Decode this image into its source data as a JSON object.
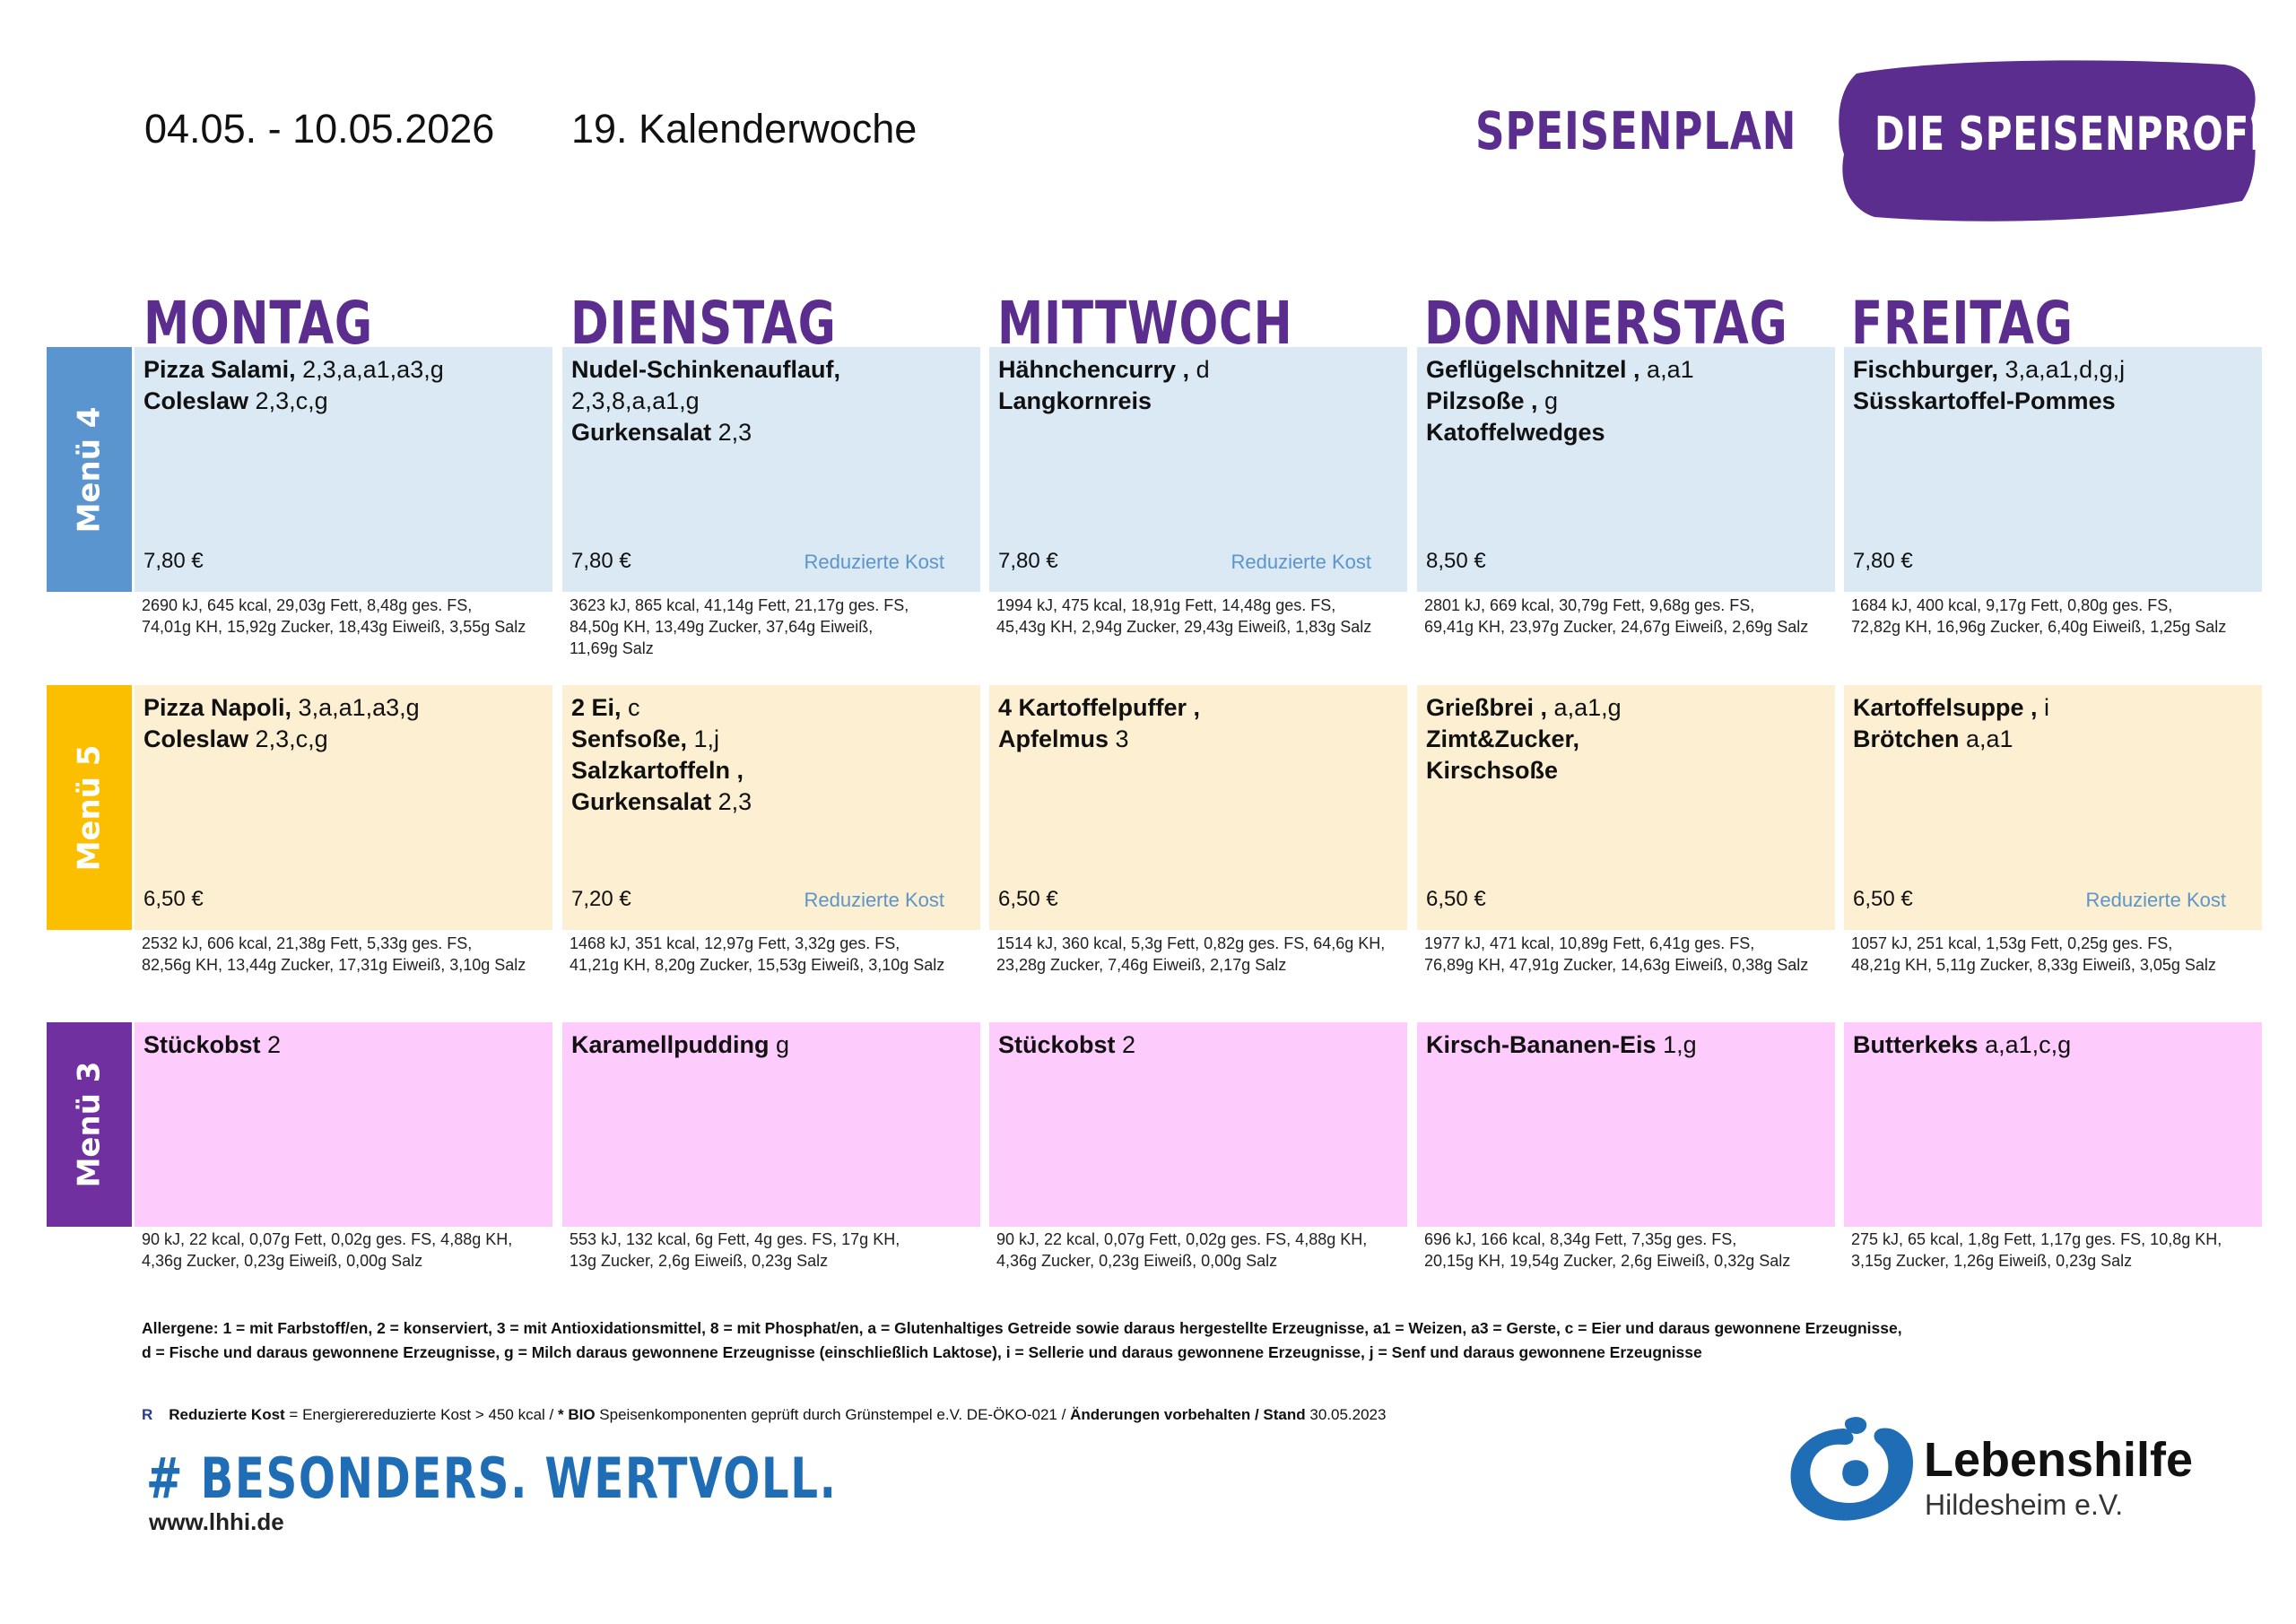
{
  "header": {
    "date_range": "04.05. - 10.05.2026",
    "week": "19. Kalenderwoche",
    "title": "SPEISENPLAN",
    "brand": "DIE SPEISENPROFIS",
    "brand_color": "#5b2d8e"
  },
  "days": [
    "MONTAG",
    "DIENSTAG",
    "MITTWOCH",
    "DONNERSTAG",
    "FREITAG"
  ],
  "menus": [
    {
      "label": "Menü 4",
      "color": "#5b95cf",
      "bg": "#dbe9f5",
      "cells": [
        {
          "lines": [
            {
              "b": "Pizza Salami,",
              "t": " 2,3,a,a1,a3,g"
            },
            {
              "b": "Coleslaw",
              "t": " 2,3,c,g"
            }
          ],
          "price": "7,80 €",
          "redux": "",
          "nut": [
            "2690 kJ, 645 kcal, 29,03g Fett, 8,48g ges. FS,",
            "74,01g KH, 15,92g Zucker, 18,43g Eiweiß, 3,55g Salz"
          ]
        },
        {
          "lines": [
            {
              "b": "Nudel-Schinkenauflauf,",
              "t": ""
            },
            {
              "b": "",
              "t": "2,3,8,a,a1,g"
            },
            {
              "b": "Gurkensalat",
              "t": " 2,3"
            }
          ],
          "price": "7,80 €",
          "redux": "Reduzierte Kost",
          "nut": [
            "3623 kJ, 865 kcal, 41,14g Fett, 21,17g ges. FS,",
            "84,50g KH, 13,49g Zucker, 37,64g Eiweiß,",
            "11,69g Salz"
          ]
        },
        {
          "lines": [
            {
              "b": "Hähnchencurry ,",
              "t": " d"
            },
            {
              "b": "Langkornreis",
              "t": ""
            }
          ],
          "price": "7,80 €",
          "redux": "Reduzierte Kost",
          "nut": [
            "1994 kJ, 475 kcal, 18,91g Fett, 14,48g ges. FS,",
            "45,43g KH, 2,94g Zucker, 29,43g Eiweiß, 1,83g Salz"
          ]
        },
        {
          "lines": [
            {
              "b": "Geflügelschnitzel ,",
              "t": " a,a1"
            },
            {
              "b": "Pilzsoße ,",
              "t": " g"
            },
            {
              "b": "Katoffelwedges",
              "t": ""
            }
          ],
          "price": "8,50 €",
          "redux": "",
          "nut": [
            "2801 kJ, 669 kcal, 30,79g Fett, 9,68g ges. FS,",
            "69,41g KH, 23,97g Zucker, 24,67g Eiweiß, 2,69g Salz"
          ]
        },
        {
          "lines": [
            {
              "b": "Fischburger,",
              "t": " 3,a,a1,d,g,j"
            },
            {
              "b": "Süsskartoffel-Pommes",
              "t": ""
            }
          ],
          "price": "7,80 €",
          "redux": "",
          "nut": [
            "1684 kJ, 400 kcal, 9,17g Fett, 0,80g ges. FS,",
            "72,82g KH, 16,96g Zucker, 6,40g Eiweiß, 1,25g Salz"
          ]
        }
      ]
    },
    {
      "label": "Menü 5",
      "color": "#fbbf00",
      "bg": "#fdf0d2",
      "cells": [
        {
          "lines": [
            {
              "b": "Pizza Napoli,",
              "t": " 3,a,a1,a3,g"
            },
            {
              "b": "Coleslaw",
              "t": " 2,3,c,g"
            }
          ],
          "price": "6,50 €",
          "redux": "",
          "nut": [
            "2532 kJ, 606 kcal, 21,38g Fett, 5,33g ges. FS,",
            "82,56g KH, 13,44g Zucker, 17,31g Eiweiß, 3,10g Salz"
          ]
        },
        {
          "lines": [
            {
              "b": "2 Ei,",
              "t": " c"
            },
            {
              "b": "Senfsoße,",
              "t": " 1,j"
            },
            {
              "b": "Salzkartoffeln ,",
              "t": ""
            },
            {
              "b": "Gurkensalat",
              "t": " 2,3"
            }
          ],
          "price": "7,20 €",
          "redux": "Reduzierte Kost",
          "nut": [
            "1468 kJ, 351 kcal, 12,97g Fett, 3,32g ges. FS,",
            "41,21g KH, 8,20g Zucker, 15,53g Eiweiß, 3,10g Salz"
          ]
        },
        {
          "lines": [
            {
              "b": "4 Kartoffelpuffer ,",
              "t": ""
            },
            {
              "b": "Apfelmus",
              "t": " 3"
            }
          ],
          "price": "6,50 €",
          "redux": "",
          "nut": [
            "1514 kJ, 360 kcal, 5,3g Fett, 0,82g ges. FS, 64,6g KH,",
            "23,28g Zucker, 7,46g Eiweiß, 2,17g Salz"
          ]
        },
        {
          "lines": [
            {
              "b": "Grießbrei ,",
              "t": " a,a1,g"
            },
            {
              "b": "Zimt&Zucker,",
              "t": ""
            },
            {
              "b": "Kirschsoße",
              "t": ""
            }
          ],
          "price": "6,50 €",
          "redux": "",
          "nut": [
            "1977 kJ, 471 kcal, 10,89g Fett, 6,41g ges. FS,",
            "76,89g KH, 47,91g Zucker, 14,63g Eiweiß, 0,38g Salz"
          ]
        },
        {
          "lines": [
            {
              "b": "Kartoffelsuppe ,",
              "t": " i"
            },
            {
              "b": "Brötchen",
              "t": " a,a1"
            }
          ],
          "price": "6,50 €",
          "redux": "Reduzierte Kost",
          "nut": [
            "1057 kJ, 251 kcal, 1,53g Fett, 0,25g ges. FS,",
            "48,21g KH, 5,11g Zucker, 8,33g Eiweiß, 3,05g Salz"
          ]
        }
      ]
    },
    {
      "label": "Menü 3",
      "color": "#7030a0",
      "bg": "#fecbfd",
      "cells": [
        {
          "lines": [
            {
              "b": "Stückobst",
              "t": " 2"
            }
          ],
          "price": "",
          "redux": "",
          "nut": [
            "90 kJ, 22 kcal, 0,07g Fett, 0,02g ges. FS, 4,88g KH,",
            "4,36g Zucker, 0,23g Eiweiß, 0,00g Salz"
          ]
        },
        {
          "lines": [
            {
              "b": "Karamellpudding",
              "t": " g"
            }
          ],
          "price": "",
          "redux": "",
          "nut": [
            "553 kJ, 132 kcal, 6g Fett, 4g ges. FS, 17g KH,",
            "13g Zucker, 2,6g Eiweiß, 0,23g Salz"
          ]
        },
        {
          "lines": [
            {
              "b": "Stückobst",
              "t": " 2"
            }
          ],
          "price": "",
          "redux": "",
          "nut": [
            "90 kJ, 22 kcal, 0,07g Fett, 0,02g ges. FS, 4,88g KH,",
            "4,36g Zucker, 0,23g Eiweiß, 0,00g Salz"
          ]
        },
        {
          "lines": [
            {
              "b": "Kirsch-Bananen-Eis",
              "t": " 1,g"
            }
          ],
          "price": "",
          "redux": "",
          "nut": [
            "696 kJ, 166 kcal, 8,34g Fett, 7,35g ges. FS,",
            "20,15g KH, 19,54g Zucker, 2,6g Eiweiß, 0,32g Salz"
          ]
        },
        {
          "lines": [
            {
              "b": "Butterkeks",
              "t": " a,a1,c,g"
            }
          ],
          "price": "",
          "redux": "",
          "nut": [
            "275 kJ, 65 kcal, 1,8g Fett, 1,17g ges. FS, 10,8g KH,",
            "3,15g Zucker, 1,26g Eiweiß, 0,23g Salz"
          ]
        }
      ]
    }
  ],
  "allergens": [
    "Allergene: 1 = mit Farbstoff/en, 2 = konserviert, 3 = mit Antioxidationsmittel, 8 = mit Phosphat/en, a = Glutenhaltiges Getreide sowie daraus hergestellte Erzeugnisse, a1 = Weizen, a3 = Gerste, c = Eier und daraus gewonnene Erzeugnisse,",
    "d = Fische und daraus gewonnene Erzeugnisse, g = Milch daraus gewonnene Erzeugnisse (einschließlich Laktose), i = Sellerie und daraus gewonnene Erzeugnisse, j = Senf und daraus gewonnene Erzeugnisse"
  ],
  "legend": {
    "marker": "R",
    "reduced_label": "Reduzierte Kost",
    "reduced_desc": " = Energierereduzierte Kost > 450 kcal / ",
    "bio_label": "* BIO",
    "bio_desc": " Speisenkomponenten geprüft durch Grünstempel e.V. DE-ÖKO-021 / ",
    "changes_label": "Änderungen vorbehalten / Stand",
    "stand_date": " 30.05.2023"
  },
  "footer": {
    "hashtag": "# BESONDERS. WERTVOLL.",
    "url": "www.lhhi.de",
    "logo_name": "Lebenshilfe",
    "logo_sub": "Hildesheim e.V.",
    "logo_color": "#1f6db5"
  }
}
